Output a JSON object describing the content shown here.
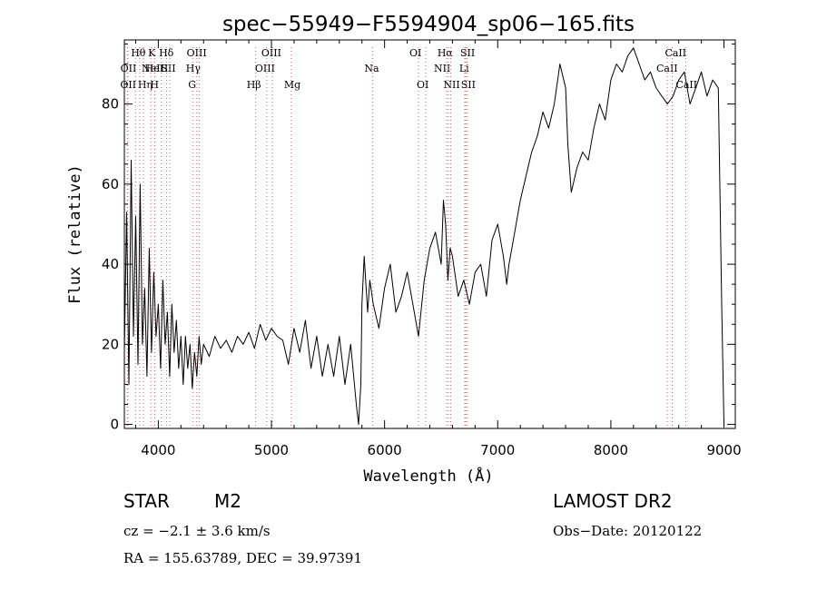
{
  "chart_data": {
    "type": "line",
    "title": "spec−55949−F5594904_sp06−165.fits",
    "xlabel": "Wavelength (Å)",
    "ylabel": "Flux (relative)",
    "xlim": [
      3700,
      9100
    ],
    "ylim": [
      -1,
      96
    ],
    "grid": false,
    "legend": "none",
    "line_color": "#000000",
    "marker_color": "#d06060",
    "x_ticks": [
      {
        "value": 4000,
        "label": "4000"
      },
      {
        "value": 5000,
        "label": "5000"
      },
      {
        "value": 6000,
        "label": "6000"
      },
      {
        "value": 7000,
        "label": "7000"
      },
      {
        "value": 8000,
        "label": "8000"
      },
      {
        "value": 9000,
        "label": "9000"
      }
    ],
    "y_ticks": [
      {
        "value": 0,
        "label": "0"
      },
      {
        "value": 20,
        "label": "20"
      },
      {
        "value": 40,
        "label": "40"
      },
      {
        "value": 60,
        "label": "60"
      },
      {
        "value": 80,
        "label": "80"
      }
    ],
    "series": [
      {
        "x": [
          3700,
          3720,
          3740,
          3760,
          3780,
          3800,
          3820,
          3840,
          3860,
          3880,
          3900,
          3920,
          3940,
          3960,
          3980,
          4000,
          4020,
          4040,
          4060,
          4080,
          4100,
          4120,
          4140,
          4160,
          4180,
          4200,
          4220,
          4240,
          4260,
          4280,
          4300,
          4320,
          4340,
          4360,
          4380,
          4400,
          4450,
          4500,
          4550,
          4600,
          4650,
          4700,
          4750,
          4800,
          4850,
          4900,
          4950,
          5000,
          5050,
          5100,
          5150,
          5200,
          5250,
          5300,
          5350,
          5400,
          5450,
          5500,
          5550,
          5600,
          5650,
          5700,
          5750,
          5770,
          5790,
          5800,
          5820,
          5850,
          5870,
          5900,
          5950,
          6000,
          6050,
          6100,
          6150,
          6200,
          6250,
          6300,
          6350,
          6400,
          6450,
          6500,
          6520,
          6540,
          6560,
          6580,
          6600,
          6650,
          6700,
          6750,
          6800,
          6850,
          6900,
          6950,
          7000,
          7050,
          7080,
          7100,
          7150,
          7200,
          7250,
          7300,
          7350,
          7400,
          7450,
          7500,
          7550,
          7600,
          7620,
          7650,
          7700,
          7750,
          7800,
          7850,
          7900,
          7950,
          8000,
          8050,
          8100,
          8150,
          8200,
          8250,
          8300,
          8350,
          8400,
          8450,
          8500,
          8550,
          8600,
          8650,
          8700,
          8750,
          8800,
          8850,
          8900,
          8950,
          8980,
          9000
        ],
        "y": [
          18,
          53,
          10,
          66,
          22,
          52,
          15,
          60,
          20,
          34,
          12,
          44,
          18,
          38,
          22,
          30,
          14,
          36,
          20,
          28,
          12,
          30,
          18,
          26,
          14,
          22,
          10,
          22,
          14,
          20,
          9,
          18,
          12,
          22,
          15,
          20,
          17,
          22,
          19,
          21,
          18,
          22,
          20,
          23,
          19,
          25,
          21,
          24,
          22,
          21,
          15,
          24,
          18,
          26,
          14,
          22,
          12,
          20,
          12,
          22,
          10,
          20,
          5,
          0,
          10,
          30,
          42,
          28,
          36,
          30,
          24,
          34,
          40,
          28,
          32,
          38,
          30,
          22,
          36,
          44,
          48,
          40,
          56,
          50,
          36,
          44,
          42,
          32,
          36,
          30,
          38,
          40,
          32,
          46,
          50,
          42,
          35,
          40,
          48,
          56,
          62,
          68,
          72,
          78,
          74,
          80,
          90,
          84,
          70,
          58,
          64,
          68,
          66,
          74,
          80,
          76,
          86,
          90,
          88,
          92,
          94,
          90,
          86,
          88,
          84,
          82,
          80,
          82,
          86,
          88,
          80,
          84,
          88,
          82,
          86,
          84,
          30,
          0
        ]
      }
    ],
    "line_markers": [
      {
        "wl": 3727,
        "label": "OII",
        "row": 2,
        "dx": -8
      },
      {
        "wl": 3729,
        "label": "OII",
        "row": 1,
        "dx": -8
      },
      {
        "wl": 3798,
        "label": "Hθ",
        "row": 0,
        "dx": -5
      },
      {
        "wl": 3835,
        "label": "Hη",
        "row": 2,
        "dx": -2
      },
      {
        "wl": 3869,
        "label": "NeIII",
        "row": 1,
        "dx": -2
      },
      {
        "wl": 3934,
        "label": "K",
        "row": 0,
        "dx": -3
      },
      {
        "wl": 3968,
        "label": "H",
        "row": 2,
        "dx": -5
      },
      {
        "wl": 4026,
        "label": "HeI",
        "row": 1,
        "dx": -18
      },
      {
        "wl": 4072,
        "label": "SII",
        "row": 1,
        "dx": -6
      },
      {
        "wl": 4102,
        "label": "Hδ",
        "row": 0,
        "dx": -12
      },
      {
        "wl": 4304,
        "label": "G",
        "row": 2,
        "dx": -5
      },
      {
        "wl": 4340,
        "label": "Hγ",
        "row": 1,
        "dx": -12
      },
      {
        "wl": 4363,
        "label": "OIII",
        "row": 0,
        "dx": -14
      },
      {
        "wl": 4861,
        "label": "Hβ",
        "row": 2,
        "dx": -10
      },
      {
        "wl": 4959,
        "label": "OIII",
        "row": 1,
        "dx": -13
      },
      {
        "wl": 5007,
        "label": "OIII",
        "row": 0,
        "dx": -12
      },
      {
        "wl": 5175,
        "label": "Mg",
        "row": 2,
        "dx": -8
      },
      {
        "wl": 5893,
        "label": "Na",
        "row": 1,
        "dx": -9
      },
      {
        "wl": 6300,
        "label": "OI",
        "row": 0,
        "dx": -10
      },
      {
        "wl": 6364,
        "label": "OI",
        "row": 2,
        "dx": -10
      },
      {
        "wl": 6548,
        "label": "NII",
        "row": 1,
        "dx": -14
      },
      {
        "wl": 6563,
        "label": "Hα",
        "row": 0,
        "dx": -12
      },
      {
        "wl": 6584,
        "label": "NII",
        "row": 2,
        "dx": -8
      },
      {
        "wl": 6708,
        "label": "Li",
        "row": 1,
        "dx": -6
      },
      {
        "wl": 6717,
        "label": "SII",
        "row": 0,
        "dx": -6
      },
      {
        "wl": 6731,
        "label": "SII",
        "row": 2,
        "dx": -7
      },
      {
        "wl": 8498,
        "label": "CaII",
        "row": 1,
        "dx": -12
      },
      {
        "wl": 8542,
        "label": "CaII",
        "row": 0,
        "dx": -8
      },
      {
        "wl": 8662,
        "label": "CaII",
        "row": 2,
        "dx": -11
      }
    ]
  },
  "info": {
    "object_type": "STAR",
    "subclass": "M2",
    "survey": "LAMOST DR2",
    "redshift": "cz = −2.1 ± 3.6 km/s",
    "obs_date": "Obs−Date: 20120122",
    "coordinates": "RA = 155.63789, DEC =  39.97391"
  }
}
